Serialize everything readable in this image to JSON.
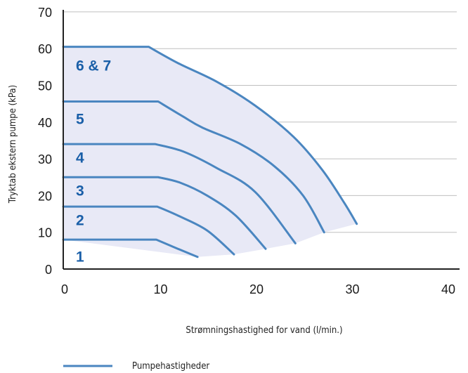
{
  "chart_data": {
    "type": "line",
    "xlabel": "Strømningshastighed for vand (l/min.)",
    "ylabel": "Tryktab ekstern pumpe (kPa)",
    "xlim": [
      0,
      42
    ],
    "ylim": [
      0,
      70
    ],
    "x_ticks": [
      "0",
      "10",
      "20",
      "30",
      "40"
    ],
    "y_ticks": [
      "0",
      "10",
      "20",
      "30",
      "40",
      "50",
      "60",
      "70"
    ],
    "grid": "horizontal",
    "colors": {
      "curve": "#4a86c0",
      "label": "#1a5fa8",
      "area": "#e8e9f6",
      "grid": "#bfbfbf",
      "axis": "#222222"
    },
    "series": [
      {
        "label": "1",
        "points": [
          [
            0,
            8
          ],
          [
            9.7,
            8
          ],
          [
            11.5,
            6
          ],
          [
            14,
            3.3
          ]
        ]
      },
      {
        "label": "2",
        "points": [
          [
            0,
            17
          ],
          [
            9.8,
            17
          ],
          [
            12,
            14.5
          ],
          [
            15,
            10.5
          ],
          [
            17.8,
            4
          ]
        ]
      },
      {
        "label": "3",
        "points": [
          [
            0,
            25
          ],
          [
            9.9,
            25
          ],
          [
            12.2,
            23.5
          ],
          [
            15,
            20
          ],
          [
            18,
            14.5
          ],
          [
            21.1,
            5.5
          ]
        ]
      },
      {
        "label": "4",
        "points": [
          [
            0,
            34
          ],
          [
            9.6,
            34
          ],
          [
            12.5,
            32
          ],
          [
            16,
            27.5
          ],
          [
            20,
            21
          ],
          [
            24.2,
            7
          ]
        ]
      },
      {
        "label": "5",
        "points": [
          [
            0,
            45.6
          ],
          [
            9.9,
            45.6
          ],
          [
            12.5,
            41.5
          ],
          [
            14.5,
            38.5
          ],
          [
            18.5,
            34
          ],
          [
            22,
            28
          ],
          [
            25,
            20
          ],
          [
            27.2,
            10
          ]
        ]
      },
      {
        "label": "6 & 7",
        "points": [
          [
            0,
            60.5
          ],
          [
            8.9,
            60.5
          ],
          [
            12,
            56
          ],
          [
            16,
            51
          ],
          [
            20,
            44.5
          ],
          [
            24,
            36
          ],
          [
            27,
            27
          ],
          [
            29.3,
            18
          ],
          [
            30.6,
            12.3
          ]
        ]
      }
    ],
    "boundary": [
      [
        14,
        3.3
      ],
      [
        17.8,
        4
      ],
      [
        21.1,
        5.5
      ],
      [
        24.2,
        7
      ],
      [
        27.2,
        10
      ],
      [
        30.6,
        12.3
      ]
    ],
    "legend": {
      "label": "Pumpehastigheder",
      "position": "bottom-left"
    }
  }
}
